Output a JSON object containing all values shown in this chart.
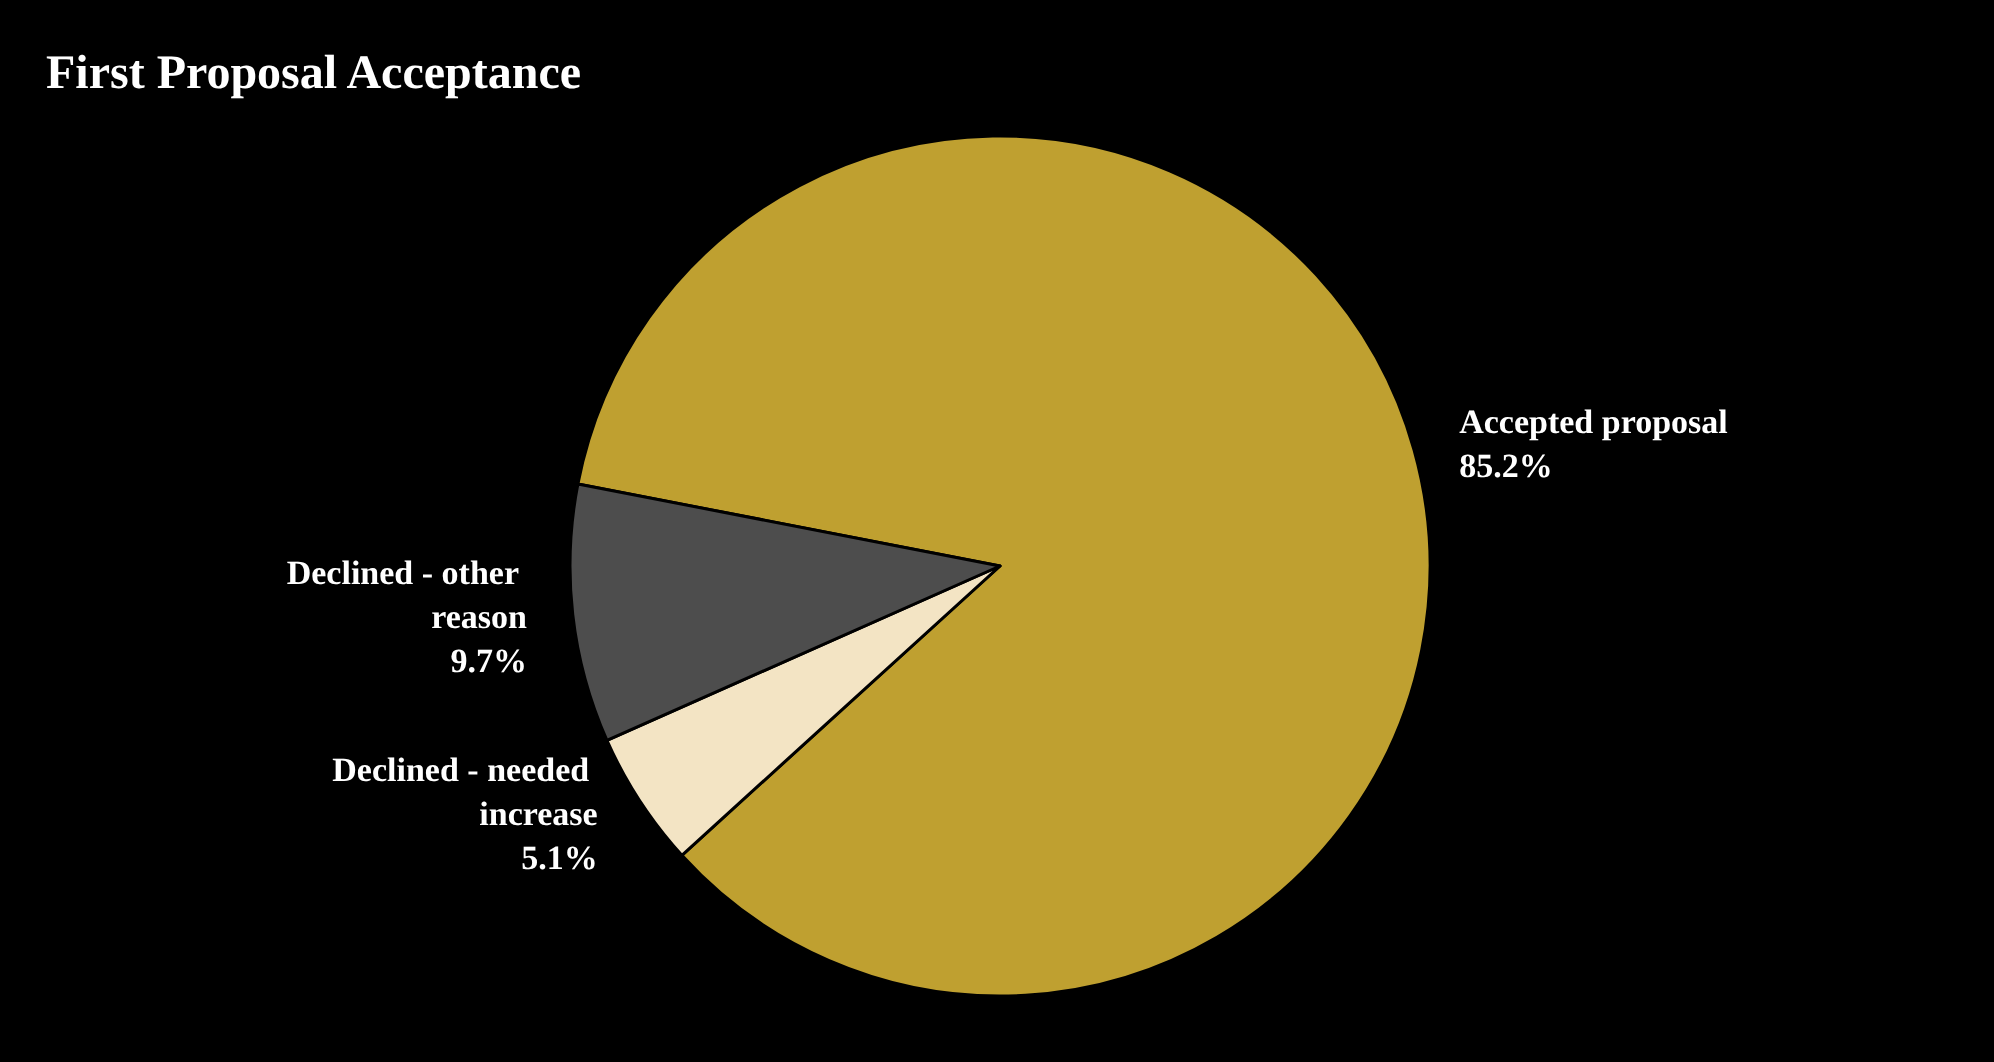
{
  "chart_data": {
    "type": "pie",
    "title": "First Proposal Acceptance",
    "categories": [
      "Accepted proposal",
      "Declined - needed increase",
      "Declined - other reason"
    ],
    "values": [
      85.2,
      5.1,
      9.7
    ],
    "value_labels": [
      "85.2%",
      "5.1%",
      "9.7%"
    ],
    "colors": [
      "#bfa030",
      "#f3e4c4",
      "#4d4d4d"
    ],
    "legend": false
  }
}
